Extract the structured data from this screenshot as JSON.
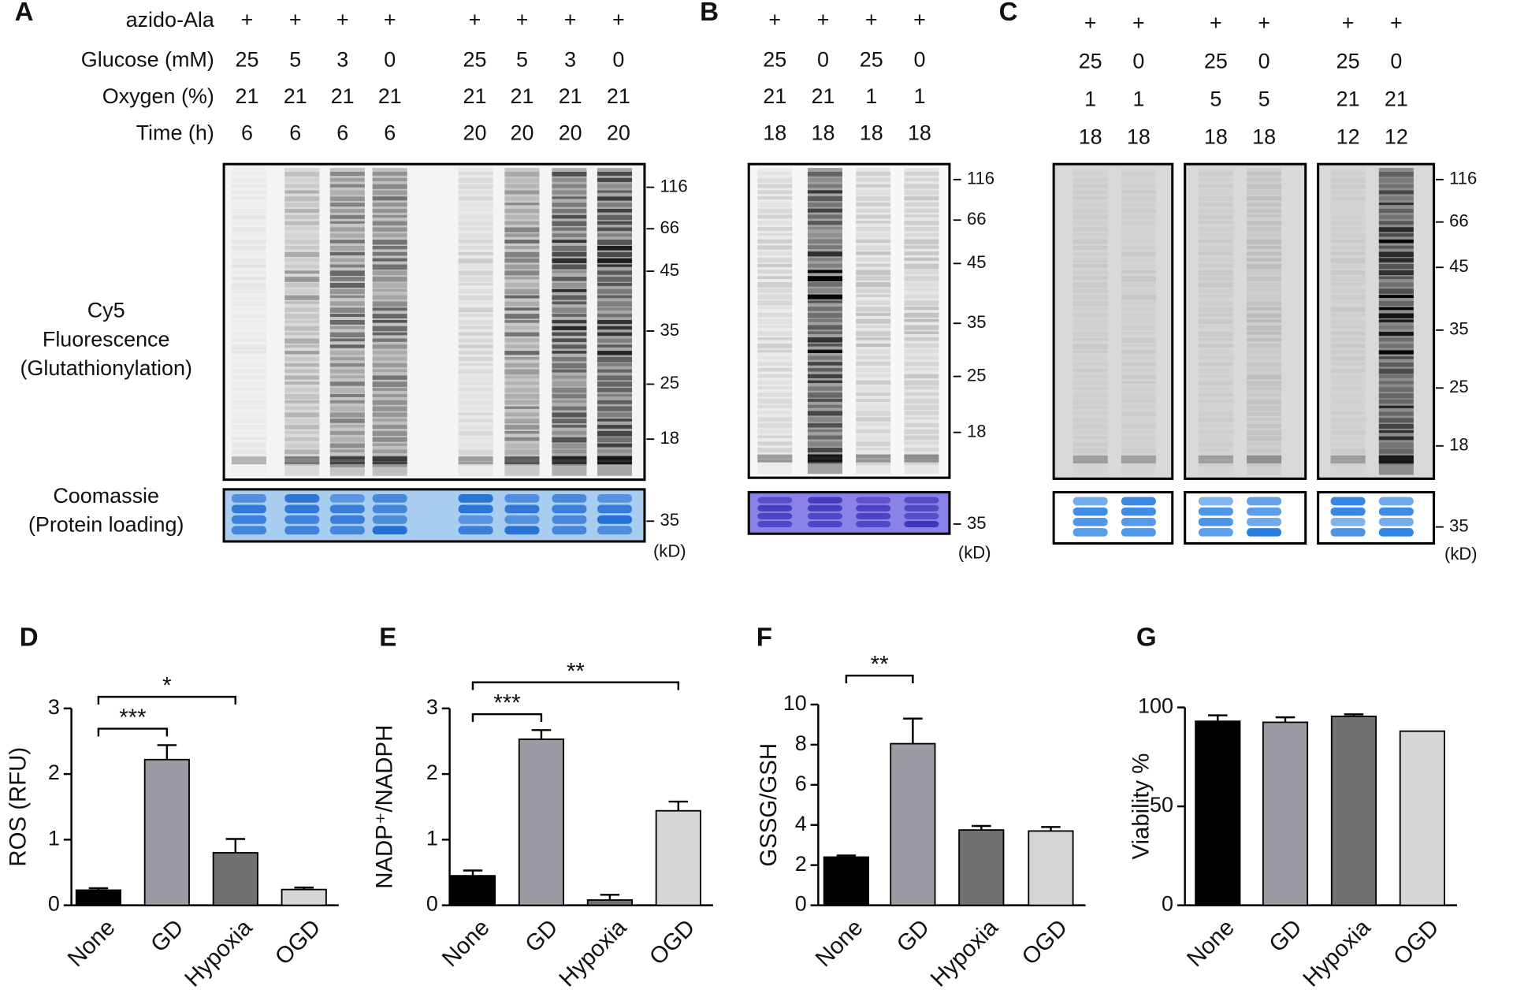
{
  "panels": {
    "A": {
      "letter": "A",
      "row_labels": [
        "azido-Ala",
        "Glucose (mM)",
        "Oxygen (%)",
        "Time (h)"
      ],
      "rows": [
        [
          "+",
          "+",
          "+",
          "+",
          "+",
          "+",
          "+",
          "+"
        ],
        [
          25,
          5,
          3,
          0,
          25,
          5,
          3,
          0
        ],
        [
          21,
          21,
          21,
          21,
          21,
          21,
          21,
          21
        ],
        [
          6,
          6,
          6,
          6,
          20,
          20,
          20,
          20
        ]
      ],
      "gel_label": [
        "Cy5",
        "Fluorescence",
        "(Glutathionylation)"
      ],
      "loading_label": [
        "Coomassie",
        "(Protein loading)"
      ],
      "markers": [
        116,
        66,
        45,
        35,
        25,
        18
      ],
      "loading_marker": 35,
      "unit": "(kD)"
    },
    "B": {
      "letter": "B",
      "rows": [
        [
          "+",
          "+",
          "+",
          "+"
        ],
        [
          25,
          0,
          25,
          0
        ],
        [
          21,
          21,
          1,
          1
        ],
        [
          18,
          18,
          18,
          18
        ]
      ],
      "markers": [
        116,
        66,
        45,
        35,
        25,
        18
      ],
      "loading_marker": 35,
      "unit": "(kD)"
    },
    "C": {
      "letter": "C",
      "rows": [
        [
          "+",
          "+",
          "+",
          "+",
          "+",
          "+"
        ],
        [
          25,
          0,
          25,
          0,
          25,
          0
        ],
        [
          1,
          1,
          5,
          5,
          21,
          21
        ],
        [
          18,
          18,
          18,
          18,
          12,
          12
        ]
      ],
      "markers": [
        116,
        66,
        45,
        35,
        25,
        18
      ],
      "loading_marker": 35,
      "unit": "(kD)"
    }
  },
  "chart_data": [
    {
      "type": "bar",
      "panel": "D",
      "ylabel": "ROS (RFU)",
      "categories": [
        "None",
        "GD",
        "Hypoxia",
        "OGD"
      ],
      "values": [
        0.23,
        2.22,
        0.8,
        0.24
      ],
      "errors": [
        0.03,
        0.22,
        0.21,
        0.03
      ],
      "colors": [
        "#000000",
        "#9b9ba3",
        "#717171",
        "#d6d6d6"
      ],
      "ylim": [
        0,
        3
      ],
      "yticks": [
        0,
        1,
        2,
        3
      ],
      "significance": [
        {
          "label": "***",
          "between": [
            "None",
            "GD"
          ]
        },
        {
          "label": "*",
          "between": [
            "None",
            "Hypoxia"
          ]
        }
      ]
    },
    {
      "type": "bar",
      "panel": "E",
      "ylabel": "NADP⁺/NADPH",
      "categories": [
        "None",
        "GD",
        "Hypoxia",
        "OGD"
      ],
      "values": [
        0.45,
        2.53,
        0.08,
        1.44
      ],
      "errors": [
        0.08,
        0.14,
        0.08,
        0.14
      ],
      "colors": [
        "#000000",
        "#9b9ba3",
        "#717171",
        "#d6d6d6"
      ],
      "ylim": [
        0,
        3
      ],
      "yticks": [
        0,
        1,
        2,
        3
      ],
      "significance": [
        {
          "label": "***",
          "between": [
            "None",
            "GD"
          ]
        },
        {
          "label": "**",
          "between": [
            "None",
            "OGD"
          ]
        }
      ]
    },
    {
      "type": "bar",
      "panel": "F",
      "ylabel": "GSSG/GSH",
      "categories": [
        "None",
        "GD",
        "Hypoxia",
        "OGD"
      ],
      "values": [
        2.4,
        8.05,
        3.75,
        3.7
      ],
      "errors": [
        0.08,
        1.25,
        0.2,
        0.2
      ],
      "colors": [
        "#000000",
        "#9b9ba3",
        "#717171",
        "#d6d6d6"
      ],
      "ylim": [
        0,
        10
      ],
      "yticks": [
        0,
        2,
        4,
        6,
        8,
        10
      ],
      "significance": [
        {
          "label": "**",
          "between": [
            "None",
            "GD"
          ]
        }
      ]
    },
    {
      "type": "bar",
      "panel": "G",
      "ylabel": "Viability %",
      "categories": [
        "None",
        "GD",
        "Hypoxia",
        "OGD"
      ],
      "values": [
        93,
        92.5,
        95.5,
        88
      ],
      "errors": [
        3,
        2.5,
        1,
        0
      ],
      "colors": [
        "#000000",
        "#9b9ba3",
        "#717171",
        "#d6d6d6"
      ],
      "ylim": [
        0,
        100
      ],
      "yticks": [
        0,
        50,
        100
      ],
      "significance": []
    }
  ]
}
